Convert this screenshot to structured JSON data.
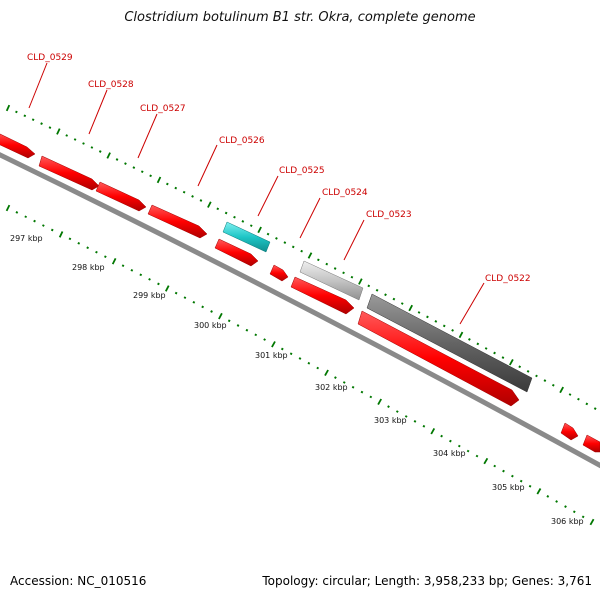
{
  "title": "Clostridium botulinum B1 str. Okra, complete genome",
  "footer": {
    "accession": "Accession: NC_010516",
    "summary": "Topology: circular; Length: 3,958,233 bp; Genes: 3,761"
  },
  "colors": {
    "gene_default": "#ff0000",
    "gene_highlight": "#20c8c8",
    "gene_light_gray": "#c8c8c8",
    "gene_dark_gray": "#6a6a6a",
    "backbone": "#808080",
    "ticks": "#007700",
    "labels": "#cc0000"
  },
  "scale_labels": [
    "297 kbp",
    "298 kbp",
    "299 kbp",
    "300 kbp",
    "301 kbp",
    "302 kbp",
    "303 kbp",
    "304 kbp",
    "305 kbp",
    "306 kbp"
  ],
  "gene_labels": [
    "CLD_0529",
    "CLD_0528",
    "CLD_0527",
    "CLD_0526",
    "CLD_0525",
    "CLD_0524",
    "CLD_0523",
    "CLD_0522"
  ]
}
